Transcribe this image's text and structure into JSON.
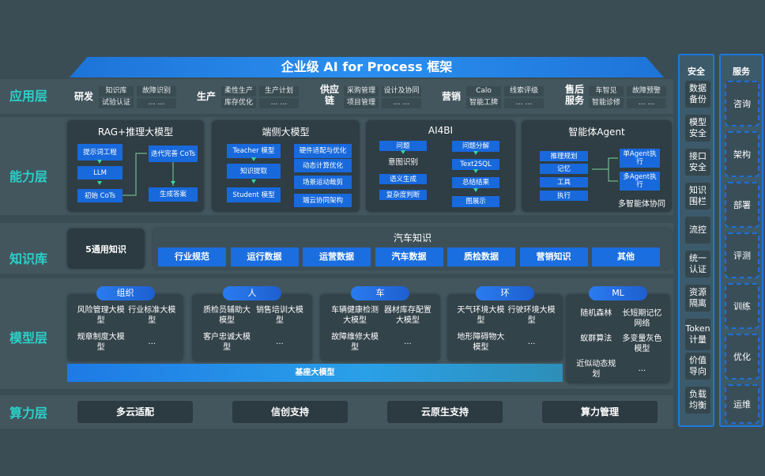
{
  "title": "企业级 AI for Process 框架",
  "layers": {
    "app": "应用层",
    "capability": "能力层",
    "knowledge": "知识库",
    "model": "模型层",
    "compute": "算力层"
  },
  "app_groups": [
    {
      "label": "研发",
      "items": [
        "知识库",
        "试验认证",
        "故障识别",
        "… …"
      ]
    },
    {
      "label": "生产",
      "items": [
        "柔性生产",
        "库存优化",
        "生产计划",
        "… …"
      ]
    },
    {
      "label": "供应链",
      "items": [
        "采购管理",
        "项目管理",
        "设计及协同",
        "… …"
      ]
    },
    {
      "label": "营销",
      "items": [
        "Calo",
        "智能工牌",
        "线索评级",
        "… …"
      ]
    },
    {
      "label": "售后服务",
      "items": [
        "车智见",
        "智能诊修",
        "故障预警",
        "… …"
      ]
    }
  ],
  "capabilities": [
    {
      "title": "RAG+推理大模型",
      "boxes": [
        "提示词工程",
        "LLM",
        "初始 CoTs",
        "迭代完善 CoTs",
        "生成答案"
      ]
    },
    {
      "title": "端侧大模型",
      "boxes": [
        "Teacher 模型",
        "知识提取",
        "Student 模型",
        "硬件适配与优化",
        "动态计算优化",
        "场景运动裁剪",
        "端云协同架构"
      ]
    },
    {
      "title": "AI4BI",
      "boxes": [
        "问题",
        "意图识别",
        "语义生成",
        "复杂度判断",
        "问题分解",
        "Text2SQL",
        "总结结果",
        "图展示"
      ]
    },
    {
      "title": "智能体Agent",
      "boxes": [
        "推理规划",
        "记忆",
        "工具",
        "执行",
        "单Agent执行",
        "多Agent执行"
      ],
      "footer": "多智能体协同"
    }
  ],
  "knowledge": {
    "general": "5通用知识",
    "car_title": "汽车知识",
    "car_items": [
      "行业规范",
      "运行数据",
      "运营数据",
      "汽车数据",
      "质检数据",
      "营销知识",
      "其他"
    ]
  },
  "models": [
    {
      "tag": "组织",
      "items": [
        "风险管理大模型",
        "行业标准大模型",
        "规章制度大模型",
        "..."
      ]
    },
    {
      "tag": "人",
      "items": [
        "质检员辅助大模型",
        "销售培训大模型",
        "客户忠诚大模型",
        "..."
      ]
    },
    {
      "tag": "车",
      "items": [
        "车辆健康检测大模型",
        "器材库存配置大模型",
        "故障维修大模型",
        "..."
      ]
    },
    {
      "tag": "环",
      "items": [
        "天气环境大模型",
        "行驶环境大模型",
        "地形障碍物大模型",
        "..."
      ]
    },
    {
      "tag": "ML",
      "items": [
        "随机森林",
        "长短期记忆网络",
        "蚁群算法",
        "多变量灰色模型",
        "近似动态规划",
        "..."
      ]
    }
  ],
  "base_model": "基座大模型",
  "compute": [
    "多云适配",
    "信创支持",
    "云原生支持",
    "算力管理"
  ],
  "security": {
    "title": "安全",
    "items": [
      "数据备份",
      "模型安全",
      "接口安全",
      "知识围栏",
      "流控",
      "统一认证",
      "资源隔离",
      "Token计量",
      "价值导向",
      "负载均衡"
    ]
  },
  "service": {
    "title": "服务",
    "items": [
      "咨询",
      "架构",
      "部署",
      "评测",
      "训练",
      "优化",
      "运维"
    ]
  },
  "colors": {
    "background": "#3a4d55",
    "accent_blue": "#1869dc",
    "layer_label": "#2bd0c8"
  }
}
